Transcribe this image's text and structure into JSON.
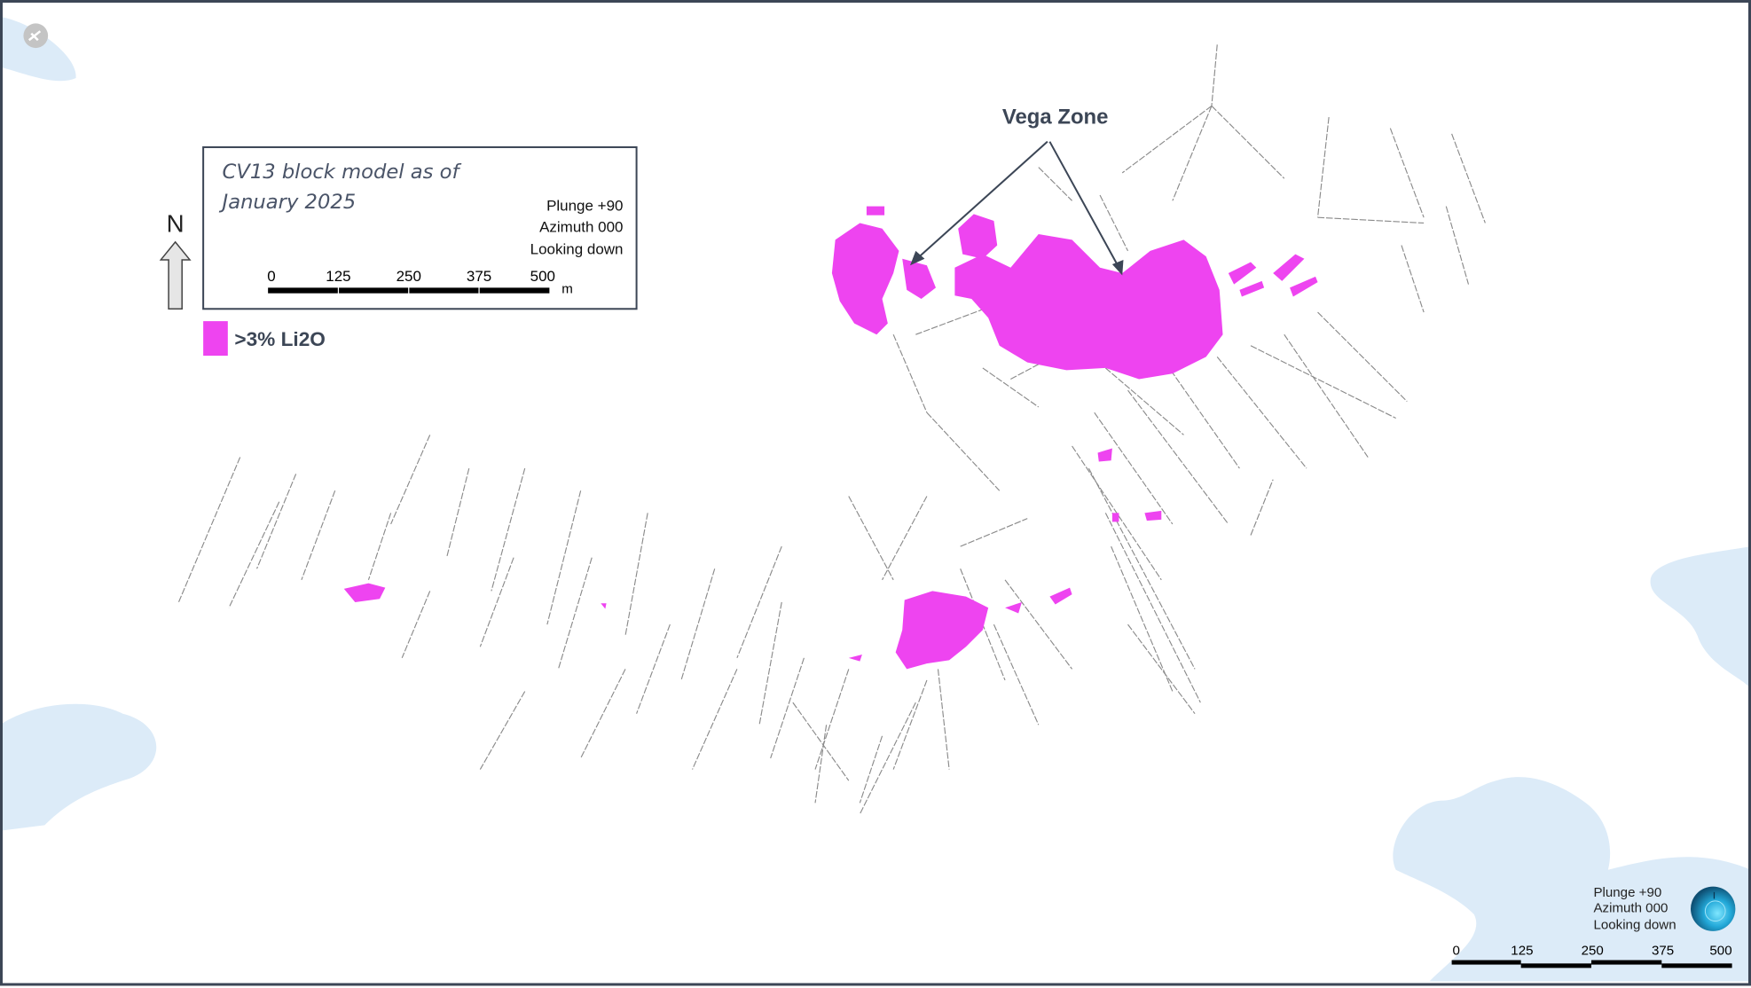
{
  "map": {
    "legend_box": {
      "title_line1": "CV13 block model as of",
      "title_line2": "January 2025",
      "view_plunge": "Plunge +90",
      "view_azimuth": "Azimuth 000",
      "view_direction": "Looking down",
      "scale_ticks": [
        "0",
        "125",
        "250",
        "375",
        "500"
      ],
      "scale_unit": "m"
    },
    "north_arrow_label": "N",
    "legend_item": {
      "label": ">3% Li2O",
      "color": "#ee44f0"
    },
    "annotation": "Vega Zone",
    "bottom_right": {
      "view_plunge": "Plunge +90",
      "view_azimuth": "Azimuth 000",
      "view_direction": "Looking down",
      "scale_ticks": [
        "0",
        "125",
        "250",
        "375",
        "500"
      ]
    },
    "colors": {
      "mineralization": "#ee44f0",
      "water": "#dcebf8",
      "drill_trace": "#8a8a8a",
      "frame": "#3c4656",
      "text": "#3c4656"
    }
  }
}
